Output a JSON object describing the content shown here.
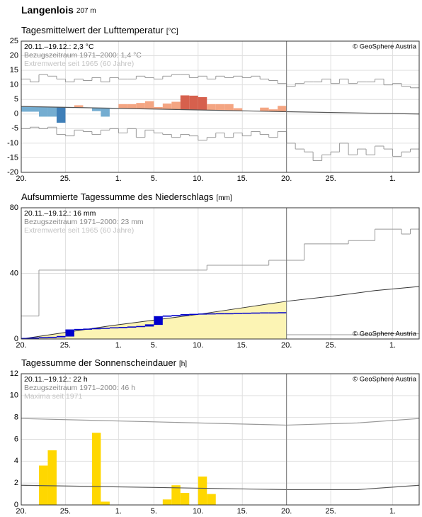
{
  "header": {
    "title": "Langenlois",
    "subtitle": "207 m"
  },
  "chart_data": [
    {
      "type": "combo",
      "title": "Tagesmittelwert der Lufttemperatur",
      "unit": "[°C]",
      "info": [
        "20.11.–19.12.: 2,3 °C",
        "Bezugszeitraum 1971–2000: 1,4 °C",
        "Extremwerte seit 1965 (60 Jahre)"
      ],
      "copyright": "© GeoSphere Austria",
      "xlim": [
        0,
        45
      ],
      "xticks": [
        {
          "value": 0,
          "label": "20."
        },
        {
          "value": 5,
          "label": "25."
        },
        {
          "value": 11,
          "label": "1."
        },
        {
          "value": 15,
          "label": "5."
        },
        {
          "value": 20,
          "label": "10."
        },
        {
          "value": 25,
          "label": "15."
        },
        {
          "value": 30,
          "label": "20."
        },
        {
          "value": 35,
          "label": "25."
        },
        {
          "value": 42,
          "label": "1."
        }
      ],
      "ylim": [
        -20,
        25
      ],
      "yticks": [
        -20,
        -15,
        -10,
        -5,
        0,
        5,
        10,
        15,
        20,
        25
      ],
      "grid": true,
      "vline": 30,
      "series": [
        {
          "type": "step",
          "color": "#999999",
          "x": [
            0,
            1,
            2,
            3,
            4,
            5,
            6,
            7,
            8,
            9,
            10,
            11,
            12,
            13,
            14,
            15,
            16,
            17,
            18,
            19,
            20,
            21,
            22,
            23,
            24,
            25,
            26,
            27,
            28,
            29,
            30,
            31,
            32,
            33,
            34,
            35,
            36,
            37,
            38,
            39,
            40,
            41,
            42,
            43,
            44
          ],
          "values": [
            12,
            11,
            13.5,
            13,
            12,
            11,
            12,
            11.5,
            12.5,
            11,
            12.5,
            12,
            12,
            13,
            12.5,
            12,
            13,
            13.5,
            13.5,
            12.5,
            13,
            12,
            13,
            12.5,
            13,
            12.5,
            13,
            12,
            11.5,
            10.5,
            9.5,
            10.5,
            11,
            11,
            12,
            10.5,
            12,
            10.5,
            11,
            11,
            12,
            10,
            10.5,
            9.5,
            9
          ]
        },
        {
          "type": "step",
          "color": "#999999",
          "x": [
            0,
            1,
            2,
            3,
            4,
            5,
            6,
            7,
            8,
            9,
            10,
            11,
            12,
            13,
            14,
            15,
            16,
            17,
            18,
            19,
            20,
            21,
            22,
            23,
            24,
            25,
            26,
            27,
            28,
            29,
            30,
            31,
            32,
            33,
            34,
            35,
            36,
            37,
            38,
            39,
            40,
            41,
            42,
            43,
            44
          ],
          "values": [
            -5,
            -4.5,
            -5,
            -4.5,
            -7,
            -7.5,
            -5.5,
            -6,
            -7,
            -5.5,
            -5,
            -6.5,
            -5,
            -8,
            -5.5,
            -6.5,
            -7,
            -8,
            -7,
            -7.5,
            -9,
            -8,
            -6.5,
            -8,
            -6.5,
            -7.5,
            -6,
            -7,
            -8,
            -6,
            -10,
            -12,
            -13,
            -16,
            -14,
            -13,
            -10,
            -14,
            -12,
            -14,
            -11,
            -12,
            -14.5,
            -13,
            -12
          ]
        },
        {
          "type": "deviation",
          "x": [
            0,
            1,
            2,
            3,
            4,
            5,
            6,
            7,
            8,
            9,
            10,
            11,
            12,
            13,
            14,
            15,
            16,
            17,
            18,
            19,
            20,
            21,
            22,
            23,
            24,
            25,
            26,
            27,
            28,
            29
          ],
          "values": [
            0.8,
            0.8,
            -0.9,
            -0.9,
            -3.0,
            2.1,
            3.0,
            2.2,
            1.0,
            -0.9,
            1.8,
            3.4,
            3.4,
            3.8,
            4.4,
            2.4,
            3.6,
            4.2,
            6.4,
            6.3,
            5.8,
            3.4,
            3.4,
            3.4,
            2.0,
            1.0,
            1.0,
            2.2,
            1.6,
            2.8
          ],
          "colors": [
            "#74add1",
            "#74add1",
            "#74add1",
            "#74add1",
            "#3f7fb8",
            "#74add1",
            "#f4a582",
            "#74add1",
            "#74add1",
            "#74add1",
            "#74add1",
            "#f4a582",
            "#f4a582",
            "#f4a582",
            "#f4a582",
            "#f4a582",
            "#f4a582",
            "#f4a582",
            "#d6604d",
            "#d6604d",
            "#d6604d",
            "#f4a582",
            "#f4a582",
            "#f4a582",
            "#f4a582",
            "#74add1",
            "#74add1",
            "#f4a582",
            "#f4a582",
            "#f4a582"
          ]
        },
        {
          "type": "line",
          "color": "#555555",
          "x": [
            0,
            30,
            45
          ],
          "values": [
            2.6,
            0.8,
            0.0
          ]
        }
      ]
    },
    {
      "type": "combo",
      "title": "Aufsummierte Tagessumme des Niederschlags",
      "unit": "[mm]",
      "info": [
        "20.11.–19.12.: 16 mm",
        "Bezugszeitraum 1971–2000: 23 mm",
        "Extremwerte seit 1965 (60 Jahre)"
      ],
      "copyright": "© GeoSphere Austria",
      "xlim": [
        0,
        45
      ],
      "xticks": [
        {
          "value": 0,
          "label": "20."
        },
        {
          "value": 5,
          "label": "25."
        },
        {
          "value": 11,
          "label": "1."
        },
        {
          "value": 15,
          "label": "5."
        },
        {
          "value": 20,
          "label": "10."
        },
        {
          "value": 25,
          "label": "15."
        },
        {
          "value": 30,
          "label": "20."
        },
        {
          "value": 35,
          "label": "25."
        },
        {
          "value": 42,
          "label": "1."
        }
      ],
      "ylim": [
        0,
        80
      ],
      "yticks": [
        0,
        40,
        80
      ],
      "grid": true,
      "vline": 30,
      "series": [
        {
          "type": "step",
          "color": "#999999",
          "x": [
            0,
            2,
            21,
            28,
            32,
            37,
            40,
            43,
            44
          ],
          "values": [
            14,
            42,
            45,
            48,
            58,
            60,
            67,
            64,
            67
          ]
        },
        {
          "type": "step",
          "color": "#999999",
          "x": [
            0,
            12,
            18,
            25,
            30,
            40
          ],
          "values": [
            0,
            0.8,
            1.6,
            2.2,
            2.6,
            3.2
          ]
        },
        {
          "type": "area",
          "color": "#333333",
          "fill": "#fcf4b4",
          "x": [
            0,
            5,
            10,
            15,
            20,
            25,
            30,
            35,
            40,
            45
          ],
          "values": [
            0,
            4,
            8,
            11.5,
            15,
            19,
            23,
            26,
            29.5,
            32
          ]
        },
        {
          "type": "cumulative",
          "color": "#0000cc",
          "x": [
            0,
            1,
            2,
            3,
            4,
            5,
            6,
            7,
            8,
            9,
            10,
            11,
            12,
            13,
            14,
            15,
            16,
            17,
            18,
            19,
            20,
            21,
            22,
            23,
            24,
            25,
            26,
            27,
            28,
            29
          ],
          "values": [
            0.3,
            0.3,
            0.2,
            0.2,
            0.5,
            4.0,
            0.3,
            0.2,
            0.3,
            0.2,
            0.3,
            0.2,
            0.3,
            0.3,
            1.0,
            5.0,
            0.4,
            0.3,
            0.5,
            0.2,
            0.2,
            0.1,
            0.1,
            0,
            0.2,
            0.1,
            0.1,
            0.1,
            0,
            0.1
          ]
        }
      ]
    },
    {
      "type": "combo",
      "title": "Tagessumme der Sonnenscheindauer",
      "unit": "[h]",
      "info": [
        "20.11.–19.12.: 22 h",
        "Bezugszeitraum 1971–2000: 46 h",
        "Maxima seit 1971"
      ],
      "copyright": "© GeoSphere Austria",
      "xlim": [
        0,
        45
      ],
      "xticks": [
        {
          "value": 0,
          "label": "20."
        },
        {
          "value": 5,
          "label": "25."
        },
        {
          "value": 11,
          "label": "1."
        },
        {
          "value": 15,
          "label": "5."
        },
        {
          "value": 20,
          "label": "10."
        },
        {
          "value": 25,
          "label": "15."
        },
        {
          "value": 30,
          "label": "20."
        },
        {
          "value": 35,
          "label": "25."
        },
        {
          "value": 42,
          "label": "1."
        }
      ],
      "ylim": [
        0,
        12
      ],
      "yticks": [
        0,
        2,
        4,
        6,
        8,
        10,
        12
      ],
      "grid": true,
      "vline": 30,
      "series": [
        {
          "type": "bar",
          "color": "#ffd700",
          "x": [
            2,
            3,
            8,
            9,
            16,
            17,
            18,
            20,
            21
          ],
          "values": [
            3.6,
            5.0,
            6.6,
            0.3,
            0.5,
            1.8,
            1.1,
            2.6,
            1.0
          ]
        },
        {
          "type": "line",
          "color": "#999999",
          "x": [
            0,
            15,
            30,
            38,
            45
          ],
          "values": [
            7.9,
            7.6,
            7.3,
            7.5,
            7.9
          ]
        },
        {
          "type": "line",
          "color": "#555555",
          "x": [
            0,
            15,
            30,
            38,
            45
          ],
          "values": [
            1.8,
            1.6,
            1.4,
            1.4,
            1.8
          ]
        }
      ]
    }
  ]
}
